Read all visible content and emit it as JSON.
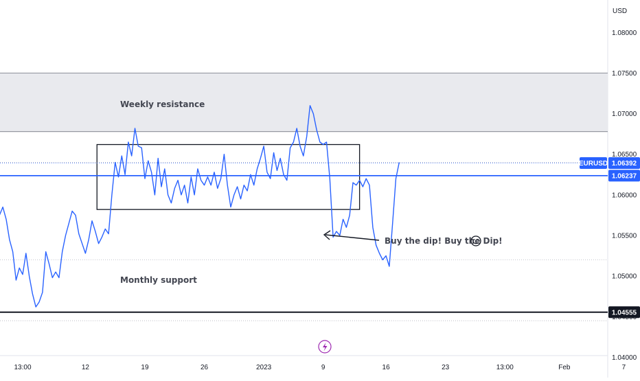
{
  "chart_data": {
    "type": "line",
    "currency": "USD",
    "symbol": "EURUSD",
    "ylim": [
      1.0375,
      1.084
    ],
    "y_ticks": [
      "1.08000",
      "1.07500",
      "1.07000",
      "1.06500",
      "1.06000",
      "1.05500",
      "1.05000",
      "1.04500",
      "1.04000"
    ],
    "y_tick_values": [
      1.08,
      1.075,
      1.07,
      1.065,
      1.06,
      1.055,
      1.05,
      1.045,
      1.04
    ],
    "x_ticks": [
      "13:00",
      "12",
      "19",
      "26",
      "2023",
      "9",
      "16",
      "23",
      "13:00",
      "Feb",
      "7"
    ],
    "x_tick_index": [
      0,
      19,
      37,
      55,
      73,
      91,
      110,
      128,
      146,
      164,
      182
    ],
    "x_range": [
      -9,
      196
    ],
    "last_price": "1.06392",
    "last_price_value": 1.06392,
    "horizontal_line": "1.06237",
    "horizontal_line_value": 1.06237,
    "support_level": "1.04555",
    "support_level_value": 1.04555,
    "resistance_zone": [
      1.0678,
      1.075
    ],
    "range_box": {
      "x_start": 22.5,
      "x_end": 102,
      "y_low": 1.0582,
      "y_high": 1.0662
    },
    "annotations": {
      "weekly_resistance": "Weekly resistance",
      "monthly_support": "Monthly support",
      "buy_the_dip": "Buy the dip! Buy the Dip!"
    },
    "series": [
      {
        "values": [
          [
            -9,
            1.0535
          ],
          [
            -8,
            1.0555
          ],
          [
            -7,
            1.0575
          ],
          [
            -6,
            1.0585
          ],
          [
            -5,
            1.057
          ],
          [
            -4,
            1.0545
          ],
          [
            -3,
            1.053
          ],
          [
            -2,
            1.0495
          ],
          [
            -1,
            1.051
          ],
          [
            0,
            1.0502
          ],
          [
            1,
            1.0528
          ],
          [
            2,
            1.05
          ],
          [
            3,
            1.0478
          ],
          [
            4,
            1.0462
          ],
          [
            5,
            1.0468
          ],
          [
            6,
            1.048
          ],
          [
            7,
            1.053
          ],
          [
            8,
            1.0515
          ],
          [
            9,
            1.0498
          ],
          [
            10,
            1.0505
          ],
          [
            11,
            1.0498
          ],
          [
            12,
            1.053
          ],
          [
            13,
            1.055
          ],
          [
            14,
            1.0565
          ],
          [
            15,
            1.058
          ],
          [
            16,
            1.0575
          ],
          [
            17,
            1.0552
          ],
          [
            18,
            1.054
          ],
          [
            19,
            1.0528
          ],
          [
            20,
            1.0545
          ],
          [
            21,
            1.0568
          ],
          [
            22,
            1.0555
          ],
          [
            23,
            1.054
          ],
          [
            24,
            1.0548
          ],
          [
            25,
            1.0558
          ],
          [
            26,
            1.0552
          ],
          [
            27,
            1.06
          ],
          [
            28,
            1.064
          ],
          [
            29,
            1.0622
          ],
          [
            30,
            1.0648
          ],
          [
            31,
            1.0625
          ],
          [
            32,
            1.0665
          ],
          [
            33,
            1.0648
          ],
          [
            34,
            1.0682
          ],
          [
            35,
            1.066
          ],
          [
            36,
            1.0658
          ],
          [
            37,
            1.062
          ],
          [
            38,
            1.0642
          ],
          [
            39,
            1.0628
          ],
          [
            40,
            1.06
          ],
          [
            41,
            1.0645
          ],
          [
            42,
            1.061
          ],
          [
            43,
            1.0632
          ],
          [
            44,
            1.06
          ],
          [
            45,
            1.059
          ],
          [
            46,
            1.0608
          ],
          [
            47,
            1.0618
          ],
          [
            48,
            1.06
          ],
          [
            49,
            1.0612
          ],
          [
            50,
            1.059
          ],
          [
            51,
            1.0622
          ],
          [
            52,
            1.06
          ],
          [
            53,
            1.0632
          ],
          [
            54,
            1.0618
          ],
          [
            55,
            1.0612
          ],
          [
            56,
            1.0622
          ],
          [
            57,
            1.0612
          ],
          [
            58,
            1.0628
          ],
          [
            59,
            1.0608
          ],
          [
            60,
            1.062
          ],
          [
            61,
            1.065
          ],
          [
            62,
            1.0612
          ],
          [
            63,
            1.0585
          ],
          [
            64,
            1.06
          ],
          [
            65,
            1.061
          ],
          [
            66,
            1.0595
          ],
          [
            67,
            1.0612
          ],
          [
            68,
            1.0605
          ],
          [
            69,
            1.0625
          ],
          [
            70,
            1.0612
          ],
          [
            71,
            1.0632
          ],
          [
            72,
            1.0645
          ],
          [
            73,
            1.066
          ],
          [
            74,
            1.0628
          ],
          [
            75,
            1.062
          ],
          [
            76,
            1.0652
          ],
          [
            77,
            1.063
          ],
          [
            78,
            1.0645
          ],
          [
            79,
            1.0625
          ],
          [
            80,
            1.0618
          ],
          [
            81,
            1.0658
          ],
          [
            82,
            1.0665
          ],
          [
            83,
            1.0682
          ],
          [
            84,
            1.066
          ],
          [
            85,
            1.0648
          ],
          [
            86,
            1.0672
          ],
          [
            87,
            1.071
          ],
          [
            88,
            1.07
          ],
          [
            89,
            1.068
          ],
          [
            90,
            1.0665
          ],
          [
            91,
            1.0662
          ],
          [
            92,
            1.0665
          ],
          [
            93,
            1.062
          ],
          [
            94,
            1.0548
          ],
          [
            95,
            1.0555
          ],
          [
            96,
            1.055
          ],
          [
            97,
            1.057
          ],
          [
            98,
            1.056
          ],
          [
            99,
            1.0575
          ],
          [
            100,
            1.0615
          ],
          [
            101,
            1.0612
          ],
          [
            102,
            1.0618
          ],
          [
            103,
            1.061
          ],
          [
            104,
            1.062
          ],
          [
            105,
            1.0612
          ],
          [
            106,
            1.056
          ],
          [
            107,
            1.0538
          ],
          [
            108,
            1.0528
          ],
          [
            109,
            1.052
          ],
          [
            110,
            1.0525
          ],
          [
            111,
            1.0512
          ],
          [
            112,
            1.0565
          ],
          [
            113,
            1.062
          ],
          [
            114,
            1.064
          ]
        ]
      }
    ]
  }
}
